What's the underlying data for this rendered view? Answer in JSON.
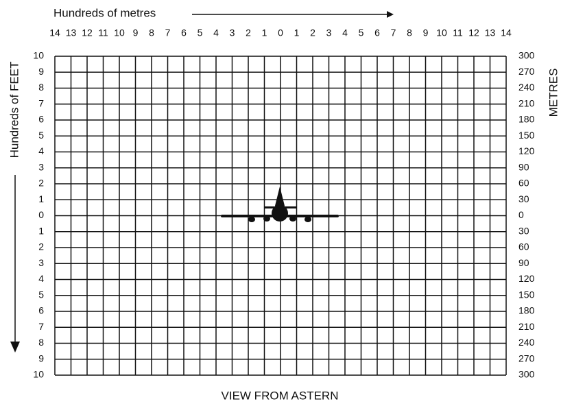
{
  "top_axis_label": "Hundreds of metres",
  "top_labels": [
    14,
    13,
    12,
    11,
    10,
    9,
    8,
    7,
    6,
    5,
    4,
    3,
    2,
    1,
    0,
    1,
    2,
    3,
    4,
    5,
    6,
    7,
    8,
    9,
    10,
    11,
    12,
    13,
    14
  ],
  "left_axis_label": "Hundreds of FEET",
  "left_labels": [
    10,
    9,
    8,
    7,
    6,
    5,
    4,
    3,
    2,
    1,
    0,
    1,
    2,
    3,
    4,
    5,
    6,
    7,
    8,
    9,
    10
  ],
  "right_axis_label": "METRES",
  "right_labels": [
    300,
    270,
    240,
    210,
    180,
    150,
    120,
    90,
    60,
    30,
    0,
    30,
    60,
    90,
    120,
    150,
    180,
    210,
    240,
    270,
    300
  ],
  "caption": "VIEW FROM ASTERN"
}
